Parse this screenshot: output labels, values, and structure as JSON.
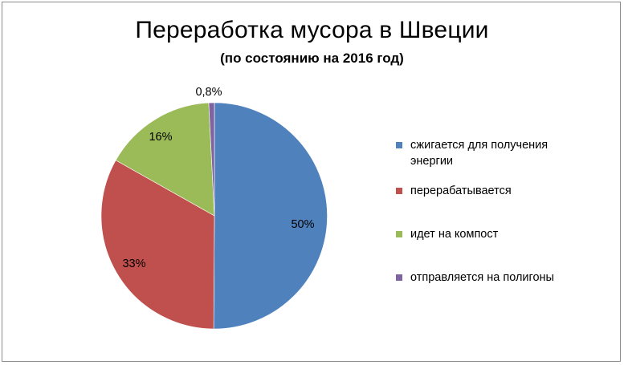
{
  "chart_data": {
    "type": "pie",
    "title": "Переработка мусора в Швеции",
    "subtitle": "(по состоянию  на 2016 год)",
    "legend_position": "right",
    "slices": [
      {
        "label": "сжигается для получения энергии",
        "value": 50,
        "data_label": "50%",
        "color": "#4f81bd"
      },
      {
        "label": "перерабатывается",
        "value": 33,
        "data_label": "33%",
        "color": "#c0504d"
      },
      {
        "label": "идет на компост",
        "value": 16,
        "data_label": "16%",
        "color": "#9bbb59"
      },
      {
        "label": "отправляется на полигоны",
        "value": 0.8,
        "data_label": "0,8%",
        "color": "#8064a2"
      }
    ]
  }
}
